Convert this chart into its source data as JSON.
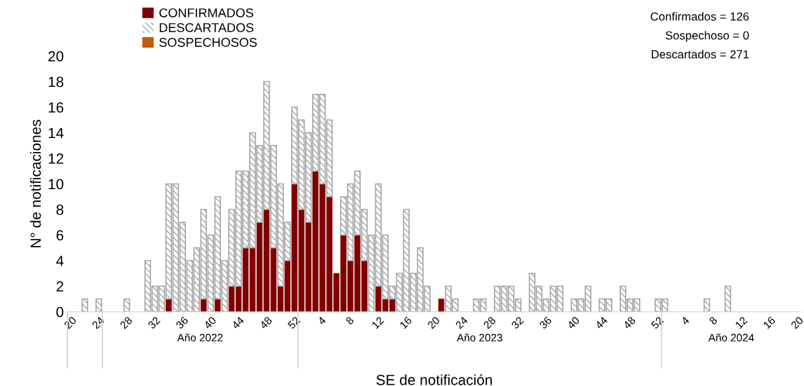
{
  "chart_data": {
    "type": "bar",
    "stacked": true,
    "xlabel": "SE de notificación",
    "ylabel": "N° de notificaciones",
    "categories": [
      "20",
      null,
      null,
      null,
      "24",
      null,
      null,
      null,
      "28",
      null,
      null,
      null,
      "32",
      null,
      null,
      null,
      "36",
      null,
      null,
      null,
      "40",
      null,
      null,
      null,
      "44",
      null,
      null,
      null,
      "48",
      null,
      null,
      null,
      "52",
      null,
      null,
      null,
      "4",
      null,
      null,
      null,
      "8",
      null,
      null,
      null,
      "12",
      null,
      null,
      null,
      "16",
      null,
      null,
      null,
      "20",
      null,
      null,
      null,
      "24",
      null,
      null,
      null,
      "28",
      null,
      null,
      null,
      "32",
      null,
      null,
      null,
      "36",
      null,
      null,
      null,
      "40",
      null,
      null,
      null,
      "44",
      null,
      null,
      null,
      "48",
      null,
      null,
      null,
      "52",
      null,
      null,
      null,
      "4",
      null,
      null,
      null,
      "8",
      null,
      null,
      null,
      "12",
      null,
      null,
      null,
      "16",
      null,
      null,
      null,
      "20"
    ],
    "series": [
      {
        "name": "CONFIRMADOS",
        "color": "#7f0000",
        "values": [
          0,
          0,
          0,
          0,
          0,
          0,
          0,
          0,
          0,
          0,
          0,
          0,
          0,
          0,
          1,
          0,
          0,
          0,
          0,
          1,
          0,
          1,
          0,
          2,
          2,
          5,
          5,
          7,
          8,
          5,
          2,
          4,
          10,
          8,
          7,
          11,
          10,
          9,
          3,
          6,
          4,
          6,
          4,
          0,
          2,
          1,
          1,
          0,
          0,
          0,
          0,
          0,
          0,
          1,
          0,
          0,
          0,
          0,
          0,
          0,
          0,
          0,
          0,
          0,
          0,
          0,
          0,
          0,
          0,
          0,
          0,
          0,
          0,
          0,
          0,
          0,
          0,
          0,
          0,
          0,
          0,
          0,
          0,
          0,
          0,
          0,
          0,
          0,
          0,
          0,
          0,
          0,
          0,
          0,
          0,
          0,
          0,
          0,
          0,
          0,
          0,
          0,
          0,
          0,
          0
        ]
      },
      {
        "name": "DESCARTADOS",
        "color": "#a5a5a5",
        "values": [
          0,
          0,
          1,
          0,
          1,
          0,
          0,
          0,
          1,
          0,
          0,
          4,
          2,
          2,
          9,
          10,
          7,
          4,
          5,
          7,
          6,
          8,
          4,
          6,
          9,
          6,
          9,
          6,
          10,
          8,
          8,
          3,
          6,
          7,
          7,
          6,
          7,
          6,
          0,
          3,
          6,
          5,
          4,
          6,
          8,
          5,
          1,
          3,
          8,
          3,
          5,
          2,
          0,
          0,
          2,
          1,
          0,
          0,
          1,
          1,
          0,
          2,
          2,
          2,
          1,
          0,
          3,
          2,
          1,
          2,
          2,
          0,
          1,
          1,
          2,
          0,
          1,
          1,
          0,
          2,
          1,
          1,
          0,
          0,
          1,
          1,
          0,
          0,
          0,
          0,
          0,
          1,
          0,
          0,
          2,
          0,
          0,
          0,
          0,
          0,
          0,
          0,
          0,
          0,
          0
        ]
      },
      {
        "name": "SOSPECHOSOS",
        "color": "#c55a11",
        "values": [
          0,
          0,
          0,
          0,
          0,
          0,
          0,
          0,
          0,
          0,
          0,
          0,
          0,
          0,
          0,
          0,
          0,
          0,
          0,
          0,
          0,
          0,
          0,
          0,
          0,
          0,
          0,
          0,
          0,
          0,
          0,
          0,
          0,
          0,
          0,
          0,
          0,
          0,
          0,
          0,
          0,
          0,
          0,
          0,
          0,
          0,
          0,
          0,
          0,
          0,
          0,
          0,
          0,
          0,
          0,
          0,
          0,
          0,
          0,
          0,
          0,
          0,
          0,
          0,
          0,
          0,
          0,
          0,
          0,
          0,
          0,
          0,
          0,
          0,
          0,
          0,
          0,
          0,
          0,
          0,
          0,
          0,
          0,
          0,
          0,
          0,
          0,
          0,
          0,
          0,
          0,
          0,
          0,
          0,
          0,
          0,
          0,
          0,
          0,
          0,
          0,
          0,
          0,
          0,
          0
        ]
      }
    ],
    "ylim": [
      0,
      20
    ],
    "yticks": [
      0,
      2,
      4,
      6,
      8,
      10,
      12,
      14,
      16,
      18,
      20
    ],
    "grid": false,
    "legend": "top left",
    "annotations": [
      "Año 2022",
      "Año 2023",
      "Año 2024",
      "Confirmados = 126",
      "Sospechoso = 0",
      "Descartados = 271"
    ]
  }
}
